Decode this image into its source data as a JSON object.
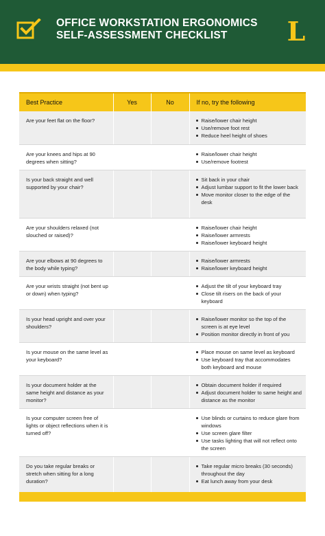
{
  "header": {
    "title_line1": "OFFICE WORKSTATION ERGONOMICS",
    "title_line2": "SELF-ASSESSMENT CHECKLIST",
    "logo_letter": "L",
    "colors": {
      "green": "#1f5a36",
      "gold": "#f6c619"
    }
  },
  "table": {
    "headers": [
      "Best Practice",
      "Yes",
      "No",
      "If no, try the following"
    ],
    "rows": [
      {
        "question": "Are your feet flat on the floor?",
        "suggestions": [
          "Raise/lower chair height",
          "Use/remove foot rest",
          "Reduce heel height of shoes"
        ]
      },
      {
        "question": "Are your knees and hips at 90 degrees when sitting?",
        "suggestions": [
          "Raise/lower chair height",
          "Use/remove footrest"
        ]
      },
      {
        "question": "Is your back straight and well supported by your chair?",
        "suggestions": [
          "Sit back in your chair",
          "Adjust lumbar support to fit the lower back",
          "Move monitor closer to the edge of the desk"
        ]
      },
      {
        "question": "Are your shoulders relaxed (not slouched or raised)?",
        "suggestions": [
          "Raise/lower chair height",
          "Raise/lower armrests",
          "Raise/lower keyboard height"
        ]
      },
      {
        "question": "Are your elbows at 90 degrees to the body while typing?",
        "suggestions": [
          "Raise/lower armrests",
          "Raise/lower keyboard height"
        ]
      },
      {
        "question": "Are your wrists straight (not bent up or down) when typing?",
        "suggestions": [
          "Adjust the tilt of your keyboard tray",
          "Close tilt risers on the back of your keyboard"
        ]
      },
      {
        "question": "Is your head upright and over your shoulders?",
        "suggestions": [
          "Raise/lower monitor so the top of the screen is at eye level",
          "Position monitor directly in front of you"
        ]
      },
      {
        "question": "Is your mouse on the same level as your keyboard?",
        "suggestions": [
          "Place mouse on same level as keyboard",
          "Use keyboard tray that accommodates both keyboard and mouse"
        ]
      },
      {
        "question": "Is your document holder at the same height and distance as your monitor?",
        "suggestions": [
          "Obtain document holder if required",
          "Adjust document holder to same height and distance as the monitor"
        ]
      },
      {
        "question": "Is your computer screen free of lights or object reflections when it is turned off?",
        "suggestions": [
          "Use blinds or curtains to reduce glare from windows",
          "Use screen glare filter",
          "Use tasks lighting that will not reflect onto the screen"
        ]
      },
      {
        "question": "Do you take regular breaks or stretch when sitting for a long duration?",
        "suggestions": [
          "Take regular micro breaks (30 seconds) throughout the day",
          "Eat lunch away from your desk"
        ]
      }
    ]
  }
}
